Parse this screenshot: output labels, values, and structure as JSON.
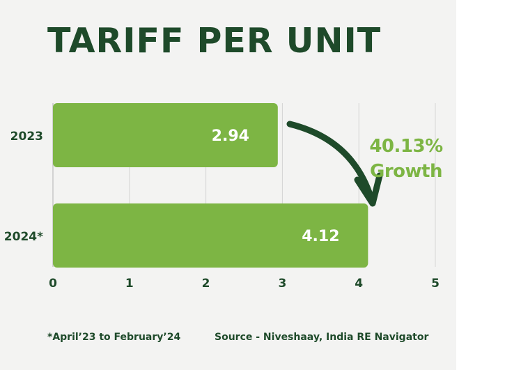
{
  "title": "TARIFF PER UNIT",
  "annotation": {
    "line1": "40.13%",
    "line2": "Growth"
  },
  "footnote": "*April’23 to February’24",
  "source": "Source - Niveshaay, India RE Navigator",
  "colors": {
    "bar": "#7db544",
    "title": "#1e4a2a",
    "arrow": "#1e4a2a",
    "annotation": "#7db544",
    "grid": "#d4d4d4"
  },
  "chart_data": {
    "type": "bar",
    "orientation": "horizontal",
    "categories": [
      "2023",
      "2024*"
    ],
    "values": [
      2.94,
      4.12
    ],
    "data_labels": [
      "2.94",
      "4.12"
    ],
    "xlim": [
      0,
      5
    ],
    "xticks": [
      "0",
      "1",
      "2",
      "3",
      "4",
      "5"
    ],
    "grid": true,
    "legend": "none"
  }
}
